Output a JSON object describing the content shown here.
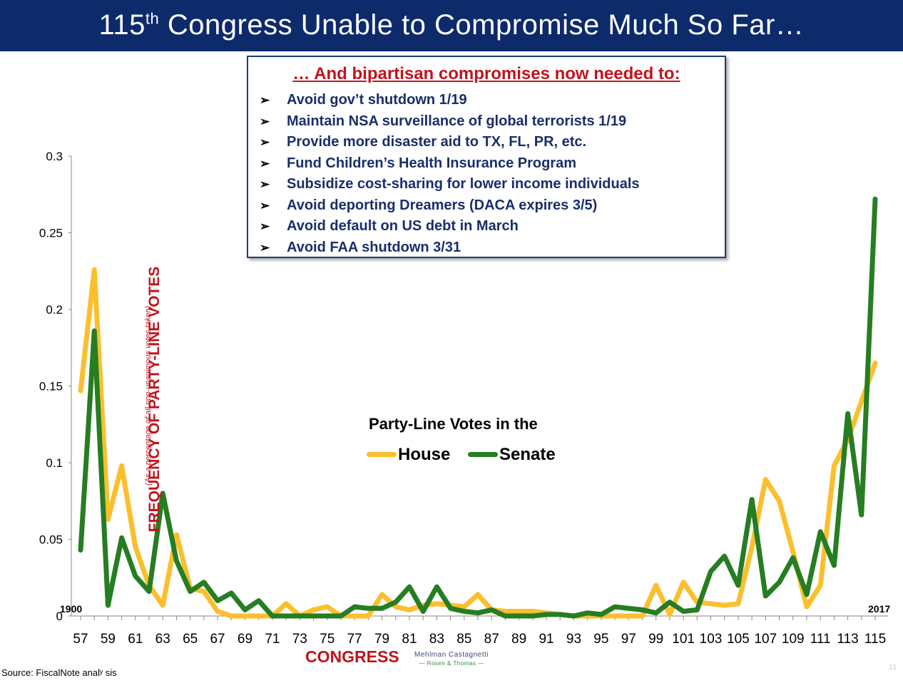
{
  "slide": {
    "title_main": "115",
    "title_sup": "th",
    "title_rest": " Congress Unable to Compromise Much So Far…",
    "source": "Source: FiscalNote analʸ sis",
    "page_number": "11",
    "logo_line1": "Mehlman Castagnetti",
    "logo_line2": "— Rosen & Thomas —"
  },
  "callout": {
    "heading": "… And bipartisan compromises now needed to:",
    "bullet": "➢",
    "items": [
      "Avoid gov’t shutdown 1/19",
      "Maintain NSA surveillance of global terrorists 1/19",
      "Provide more disaster aid to TX, FL, PR, etc.",
      "Fund Children’s Health Insurance Program",
      "Subsidize cost-sharing for lower income individuals",
      "Avoid deporting Dreamers (DACA expires 3/5)",
      "Avoid default on US debt in March",
      "Avoid FAA shutdown 3/31"
    ]
  },
  "chart_data": {
    "type": "line",
    "legend_title": "Party-Line Votes in the",
    "ylabel": "FREQUENCY OF PARTY-LINE VOTES",
    "ylabel_sub": "(As a percentage of all non-unanimous votes taken)",
    "xlabel": "CONGRESS",
    "year_start": "1900",
    "year_end": "2017",
    "ylim": [
      0,
      0.3
    ],
    "yticks": [
      "0",
      "0.05",
      "0.1",
      "0.15",
      "0.2",
      "0.25",
      "0.3"
    ],
    "ytick_values": [
      0,
      0.05,
      0.1,
      0.15,
      0.2,
      0.25,
      0.3
    ],
    "x": [
      57,
      58,
      59,
      60,
      61,
      62,
      63,
      64,
      65,
      66,
      67,
      68,
      69,
      70,
      71,
      72,
      73,
      74,
      75,
      76,
      77,
      78,
      79,
      80,
      81,
      82,
      83,
      84,
      85,
      86,
      87,
      88,
      89,
      90,
      91,
      92,
      93,
      94,
      95,
      96,
      97,
      98,
      99,
      100,
      101,
      102,
      103,
      104,
      105,
      106,
      107,
      108,
      109,
      110,
      111,
      112,
      113,
      114,
      115
    ],
    "xtick_labels": [
      "57",
      "59",
      "61",
      "63",
      "65",
      "67",
      "69",
      "71",
      "73",
      "75",
      "77",
      "79",
      "81",
      "83",
      "85",
      "87",
      "89",
      "91",
      "93",
      "95",
      "97",
      "99",
      "101",
      "103",
      "105",
      "107",
      "109",
      "111",
      "113",
      "115"
    ],
    "series": [
      {
        "name": "House",
        "color": "#fbbf2e",
        "values": [
          0.147,
          0.226,
          0.063,
          0.098,
          0.045,
          0.02,
          0.007,
          0.053,
          0.018,
          0.016,
          0.003,
          0,
          0,
          0,
          0,
          0.008,
          0,
          0.004,
          0.006,
          0,
          0,
          0,
          0.014,
          0.006,
          0.004,
          0.007,
          0.008,
          0.007,
          0.006,
          0.014,
          0.004,
          0.003,
          0.003,
          0.003,
          0.002,
          0.001,
          0,
          0,
          0,
          0,
          0,
          0,
          0.02,
          0.001,
          0.022,
          0.009,
          0.008,
          0.007,
          0.008,
          0.045,
          0.089,
          0.075,
          0.042,
          0.006,
          0.02,
          0.098,
          0.115,
          0.14,
          0.165
        ]
      },
      {
        "name": "Senate",
        "color": "#267d22",
        "values": [
          0.043,
          0.186,
          0.007,
          0.051,
          0.026,
          0.016,
          0.08,
          0.036,
          0.016,
          0.022,
          0.01,
          0.015,
          0.004,
          0.01,
          0,
          0,
          0,
          0,
          0,
          0,
          0.006,
          0.005,
          0.005,
          0.009,
          0.019,
          0.003,
          0.019,
          0.005,
          0.003,
          0.002,
          0.004,
          0,
          0,
          0,
          0.001,
          0.001,
          0,
          0.002,
          0.001,
          0.006,
          0.005,
          0.004,
          0.002,
          0.009,
          0.003,
          0.004,
          0.029,
          0.039,
          0.02,
          0.076,
          0.013,
          0.022,
          0.038,
          0.014,
          0.055,
          0.033,
          0.132,
          0.066,
          0.272
        ]
      }
    ]
  }
}
